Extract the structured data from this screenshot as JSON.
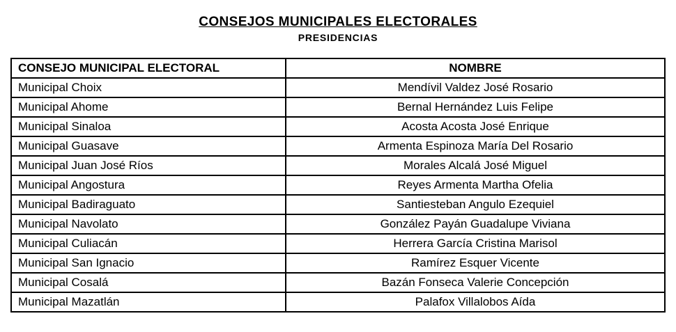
{
  "page": {
    "title": "CONSEJOS MUNICIPALES ELECTORALES",
    "subtitle": "PRESIDENCIAS"
  },
  "table": {
    "headers": {
      "consejo": "CONSEJO MUNICIPAL ELECTORAL",
      "nombre": "NOMBRE"
    },
    "rows": [
      {
        "consejo": "Municipal Choix",
        "nombre": "Mendívil Valdez José Rosario"
      },
      {
        "consejo": "Municipal Ahome",
        "nombre": "Bernal Hernández Luis Felipe"
      },
      {
        "consejo": "Municipal Sinaloa",
        "nombre": "Acosta Acosta José Enrique"
      },
      {
        "consejo": "Municipal Guasave",
        "nombre": "Armenta Espinoza María Del Rosario"
      },
      {
        "consejo": "Municipal Juan José Ríos",
        "nombre": "Morales Alcalá José Miguel"
      },
      {
        "consejo": "Municipal Angostura",
        "nombre": "Reyes Armenta Martha Ofelia"
      },
      {
        "consejo": "Municipal Badiraguato",
        "nombre": "Santiesteban Angulo Ezequiel"
      },
      {
        "consejo": "Municipal Navolato",
        "nombre": "González Payán Guadalupe Viviana"
      },
      {
        "consejo": "Municipal Culiacán",
        "nombre": "Herrera García Cristina Marisol"
      },
      {
        "consejo": "Municipal San Ignacio",
        "nombre": "Ramírez Esquer Vicente"
      },
      {
        "consejo": "Municipal Cosalá",
        "nombre": "Bazán Fonseca Valerie Concepción"
      },
      {
        "consejo": "Municipal Mazatlán",
        "nombre": "Palafox Villalobos Aída"
      }
    ]
  }
}
